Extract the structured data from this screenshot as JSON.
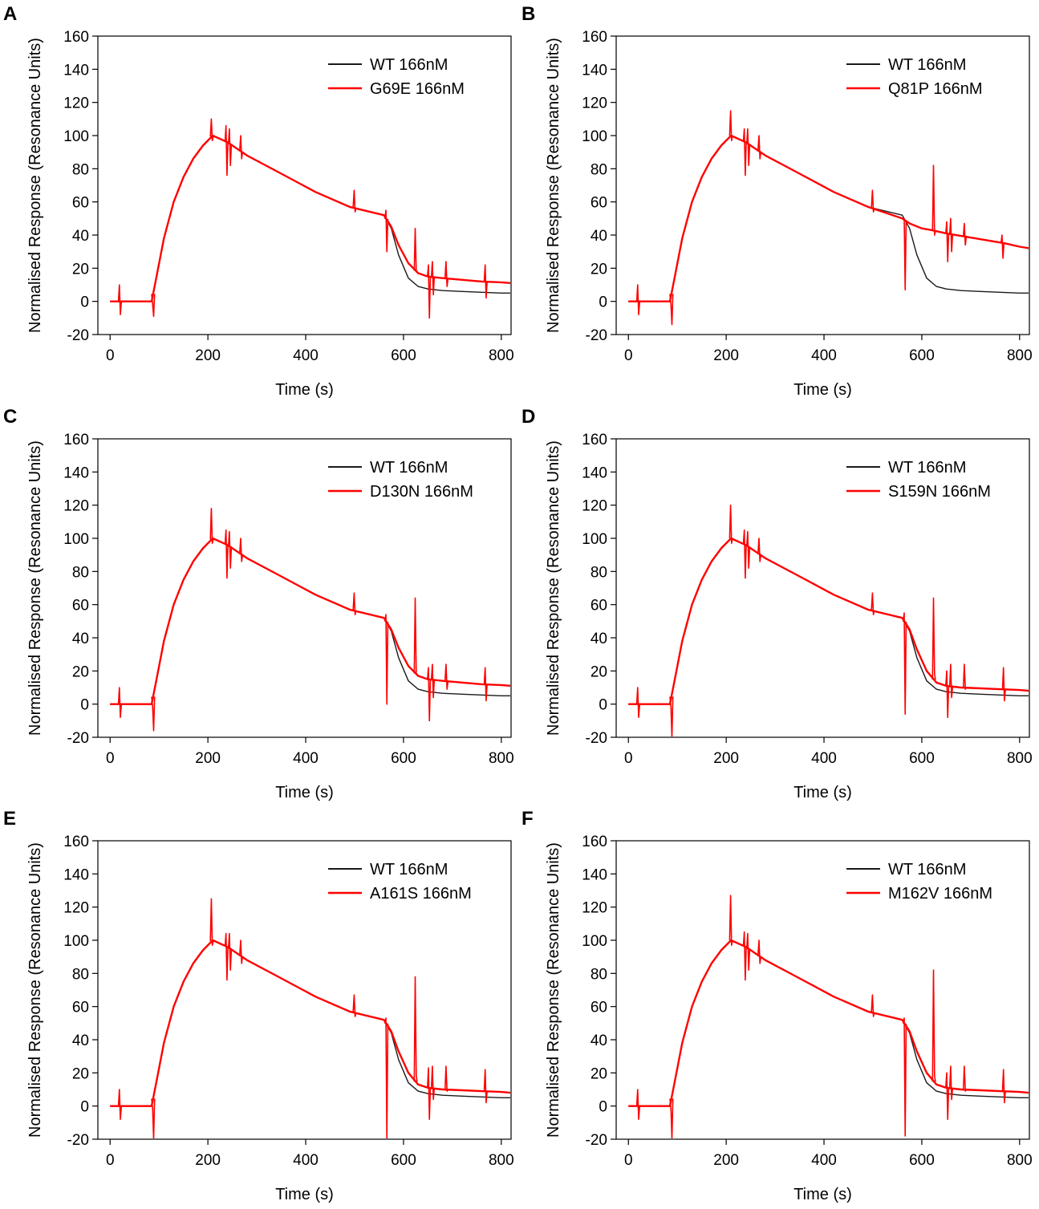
{
  "figure": {
    "colors": {
      "wt": "#1a1a1a",
      "mutant": "#ff0000",
      "axis": "#000000"
    }
  },
  "chart_data": [
    {
      "panel_label": "A",
      "type": "line",
      "xlabel": "Time (s)",
      "ylabel": "Normalised Response (Resonance Units)",
      "xlim": [
        -25,
        820
      ],
      "ylim": [
        -20,
        160
      ],
      "xticks": [
        0,
        200,
        400,
        600,
        800
      ],
      "yticks": [
        -20,
        0,
        20,
        40,
        60,
        80,
        100,
        120,
        140,
        160
      ],
      "legend_position": "top-right",
      "series": [
        {
          "name": "WT 166nM",
          "color": "#1a1a1a",
          "x": [
            0,
            85,
            95,
            110,
            130,
            150,
            170,
            190,
            210,
            240,
            280,
            350,
            420,
            490,
            560,
            575,
            590,
            610,
            630,
            650,
            680,
            720,
            760,
            800,
            820
          ],
          "y": [
            0,
            0,
            15,
            38,
            60,
            75,
            86,
            94,
            100,
            96,
            88,
            77,
            66,
            57,
            52,
            44,
            28,
            14,
            9,
            7.5,
            6.5,
            6,
            5.5,
            5,
            5
          ]
        },
        {
          "name": "G69E 166nM",
          "color": "#ff0000",
          "x": [
            0,
            85,
            95,
            110,
            130,
            150,
            170,
            190,
            210,
            240,
            280,
            350,
            420,
            490,
            560,
            575,
            590,
            610,
            630,
            650,
            680,
            720,
            760,
            800,
            820
          ],
          "y": [
            0,
            0,
            15,
            38,
            60,
            75,
            86,
            94,
            100,
            96,
            88,
            77,
            66,
            57,
            52,
            45,
            34,
            23,
            17,
            15,
            14,
            13,
            12,
            11.5,
            11
          ]
        }
      ],
      "spikes": [
        [
          20,
          10,
          -8
        ],
        [
          88,
          -2,
          -9
        ],
        [
          208,
          110,
          97
        ],
        [
          238,
          106,
          76
        ],
        [
          245,
          104,
          82
        ],
        [
          268,
          100,
          86
        ],
        [
          500,
          67,
          54
        ],
        [
          565,
          55,
          30
        ],
        [
          625,
          44,
          18
        ],
        [
          652,
          22,
          -10
        ],
        [
          660,
          24,
          4
        ],
        [
          688,
          24,
          9
        ],
        [
          768,
          22,
          2
        ]
      ]
    },
    {
      "panel_label": "B",
      "type": "line",
      "xlabel": "Time (s)",
      "ylabel": "Normalised Response (Resonance Units)",
      "xlim": [
        -25,
        820
      ],
      "ylim": [
        -20,
        160
      ],
      "xticks": [
        0,
        200,
        400,
        600,
        800
      ],
      "yticks": [
        -20,
        0,
        20,
        40,
        60,
        80,
        100,
        120,
        140,
        160
      ],
      "legend_position": "top-right",
      "series": [
        {
          "name": "WT 166nM",
          "color": "#1a1a1a",
          "x": [
            0,
            85,
            95,
            110,
            130,
            150,
            170,
            190,
            210,
            240,
            280,
            350,
            420,
            490,
            560,
            575,
            590,
            610,
            630,
            650,
            680,
            720,
            760,
            800,
            820
          ],
          "y": [
            0,
            0,
            15,
            38,
            60,
            75,
            86,
            94,
            100,
            96,
            88,
            77,
            66,
            57,
            52,
            44,
            28,
            14,
            9,
            7.5,
            6.5,
            6,
            5.5,
            5,
            5
          ]
        },
        {
          "name": "Q81P 166nM",
          "color": "#ff0000",
          "x": [
            0,
            85,
            95,
            110,
            130,
            150,
            170,
            190,
            210,
            240,
            280,
            350,
            420,
            490,
            560,
            575,
            600,
            620,
            650,
            690,
            730,
            770,
            800,
            820
          ],
          "y": [
            0,
            0,
            15,
            38,
            60,
            75,
            86,
            94,
            100,
            96,
            88,
            77,
            66,
            57,
            50,
            47,
            44,
            43,
            41,
            39,
            37,
            35,
            33,
            32
          ]
        }
      ],
      "spikes": [
        [
          20,
          10,
          -8
        ],
        [
          88,
          -2,
          -14
        ],
        [
          210,
          115,
          97
        ],
        [
          238,
          104,
          76
        ],
        [
          245,
          104,
          82
        ],
        [
          268,
          100,
          86
        ],
        [
          500,
          67,
          54
        ],
        [
          565,
          50,
          7
        ],
        [
          625,
          82,
          40
        ],
        [
          652,
          48,
          24
        ],
        [
          660,
          50,
          30
        ],
        [
          688,
          47,
          34
        ],
        [
          765,
          40,
          26
        ]
      ]
    },
    {
      "panel_label": "C",
      "type": "line",
      "xlabel": "Time (s)",
      "ylabel": "Normalised Response (Resonance Units)",
      "xlim": [
        -25,
        820
      ],
      "ylim": [
        -20,
        160
      ],
      "xticks": [
        0,
        200,
        400,
        600,
        800
      ],
      "yticks": [
        -20,
        0,
        20,
        40,
        60,
        80,
        100,
        120,
        140,
        160
      ],
      "legend_position": "top-right",
      "series": [
        {
          "name": "WT 166nM",
          "color": "#1a1a1a",
          "x": [
            0,
            85,
            95,
            110,
            130,
            150,
            170,
            190,
            210,
            240,
            280,
            350,
            420,
            490,
            560,
            575,
            590,
            610,
            630,
            650,
            680,
            720,
            760,
            800,
            820
          ],
          "y": [
            0,
            0,
            15,
            38,
            60,
            75,
            86,
            94,
            100,
            96,
            88,
            77,
            66,
            57,
            52,
            44,
            28,
            14,
            9,
            7.5,
            6.5,
            6,
            5.5,
            5,
            5
          ]
        },
        {
          "name": "D130N 166nM",
          "color": "#ff0000",
          "x": [
            0,
            85,
            95,
            110,
            130,
            150,
            170,
            190,
            210,
            240,
            280,
            350,
            420,
            490,
            560,
            575,
            590,
            610,
            630,
            650,
            680,
            720,
            760,
            800,
            820
          ],
          "y": [
            0,
            0,
            15,
            38,
            60,
            75,
            86,
            94,
            100,
            96,
            88,
            77,
            66,
            57,
            52,
            45,
            34,
            23,
            17,
            15,
            14,
            13,
            12,
            11.5,
            11
          ]
        }
      ],
      "spikes": [
        [
          20,
          10,
          -8
        ],
        [
          88,
          -2,
          -16
        ],
        [
          208,
          118,
          97
        ],
        [
          238,
          105,
          76
        ],
        [
          245,
          104,
          82
        ],
        [
          268,
          100,
          86
        ],
        [
          500,
          67,
          54
        ],
        [
          565,
          54,
          0
        ],
        [
          625,
          64,
          18
        ],
        [
          652,
          22,
          -10
        ],
        [
          660,
          24,
          4
        ],
        [
          688,
          24,
          9
        ],
        [
          768,
          22,
          2
        ]
      ]
    },
    {
      "panel_label": "D",
      "type": "line",
      "xlabel": "Time (s)",
      "ylabel": "Normalised Response (Resonance Units)",
      "xlim": [
        -25,
        820
      ],
      "ylim": [
        -20,
        160
      ],
      "xticks": [
        0,
        200,
        400,
        600,
        800
      ],
      "yticks": [
        -20,
        0,
        20,
        40,
        60,
        80,
        100,
        120,
        140,
        160
      ],
      "legend_position": "top-right",
      "series": [
        {
          "name": "WT 166nM",
          "color": "#1a1a1a",
          "x": [
            0,
            85,
            95,
            110,
            130,
            150,
            170,
            190,
            210,
            240,
            280,
            350,
            420,
            490,
            560,
            575,
            590,
            610,
            630,
            650,
            680,
            720,
            760,
            800,
            820
          ],
          "y": [
            0,
            0,
            15,
            38,
            60,
            75,
            86,
            94,
            100,
            96,
            88,
            77,
            66,
            57,
            52,
            44,
            28,
            14,
            9,
            7.5,
            6.5,
            6,
            5.5,
            5,
            5
          ]
        },
        {
          "name": "S159N 166nM",
          "color": "#ff0000",
          "x": [
            0,
            85,
            95,
            110,
            130,
            150,
            170,
            190,
            210,
            240,
            280,
            350,
            420,
            490,
            560,
            575,
            590,
            610,
            630,
            650,
            680,
            720,
            760,
            800,
            820
          ],
          "y": [
            0,
            0,
            15,
            38,
            60,
            75,
            86,
            94,
            100,
            96,
            88,
            77,
            66,
            57,
            52,
            45,
            33,
            20,
            13,
            11,
            10,
            9.5,
            9,
            8.5,
            8
          ]
        }
      ],
      "spikes": [
        [
          20,
          10,
          -8
        ],
        [
          88,
          -2,
          -20
        ],
        [
          210,
          120,
          97
        ],
        [
          238,
          105,
          76
        ],
        [
          245,
          104,
          82
        ],
        [
          268,
          100,
          86
        ],
        [
          500,
          67,
          54
        ],
        [
          565,
          55,
          -6
        ],
        [
          625,
          64,
          18
        ],
        [
          652,
          20,
          -8
        ],
        [
          660,
          24,
          4
        ],
        [
          688,
          24,
          9
        ],
        [
          768,
          22,
          2
        ]
      ]
    },
    {
      "panel_label": "E",
      "type": "line",
      "xlabel": "Time (s)",
      "ylabel": "Normalised Response (Resonance Units)",
      "xlim": [
        -25,
        820
      ],
      "ylim": [
        -20,
        160
      ],
      "xticks": [
        0,
        200,
        400,
        600,
        800
      ],
      "yticks": [
        -20,
        0,
        20,
        40,
        60,
        80,
        100,
        120,
        140,
        160
      ],
      "legend_position": "top-right",
      "series": [
        {
          "name": "WT 166nM",
          "color": "#1a1a1a",
          "x": [
            0,
            85,
            95,
            110,
            130,
            150,
            170,
            190,
            210,
            240,
            280,
            350,
            420,
            490,
            560,
            575,
            590,
            610,
            630,
            650,
            680,
            720,
            760,
            800,
            820
          ],
          "y": [
            0,
            0,
            15,
            38,
            60,
            75,
            86,
            94,
            100,
            96,
            88,
            77,
            66,
            57,
            52,
            44,
            28,
            14,
            9,
            7.5,
            6.5,
            6,
            5.5,
            5,
            5
          ]
        },
        {
          "name": "A161S 166nM",
          "color": "#ff0000",
          "x": [
            0,
            85,
            95,
            110,
            130,
            150,
            170,
            190,
            210,
            240,
            280,
            350,
            420,
            490,
            560,
            575,
            590,
            610,
            630,
            650,
            680,
            720,
            760,
            800,
            820
          ],
          "y": [
            0,
            0,
            15,
            38,
            60,
            75,
            86,
            94,
            100,
            96,
            88,
            77,
            66,
            57,
            52,
            45,
            33,
            20,
            13,
            11,
            10,
            9.5,
            9,
            8.5,
            8
          ]
        }
      ],
      "spikes": [
        [
          20,
          10,
          -8
        ],
        [
          88,
          -2,
          -20
        ],
        [
          208,
          125,
          97
        ],
        [
          238,
          104,
          76
        ],
        [
          245,
          104,
          82
        ],
        [
          268,
          100,
          86
        ],
        [
          500,
          67,
          54
        ],
        [
          565,
          53,
          -20
        ],
        [
          625,
          78,
          18
        ],
        [
          652,
          23,
          -8
        ],
        [
          660,
          24,
          4
        ],
        [
          688,
          24,
          9
        ],
        [
          768,
          22,
          2
        ]
      ]
    },
    {
      "panel_label": "F",
      "type": "line",
      "xlabel": "Time (s)",
      "ylabel": "Normalised Response (Resonance Units)",
      "xlim": [
        -25,
        820
      ],
      "ylim": [
        -20,
        160
      ],
      "xticks": [
        0,
        200,
        400,
        600,
        800
      ],
      "yticks": [
        -20,
        0,
        20,
        40,
        60,
        80,
        100,
        120,
        140,
        160
      ],
      "legend_position": "top-right",
      "series": [
        {
          "name": "WT 166nM",
          "color": "#1a1a1a",
          "x": [
            0,
            85,
            95,
            110,
            130,
            150,
            170,
            190,
            210,
            240,
            280,
            350,
            420,
            490,
            560,
            575,
            590,
            610,
            630,
            650,
            680,
            720,
            760,
            800,
            820
          ],
          "y": [
            0,
            0,
            15,
            38,
            60,
            75,
            86,
            94,
            100,
            96,
            88,
            77,
            66,
            57,
            52,
            44,
            28,
            14,
            9,
            7.5,
            6.5,
            6,
            5.5,
            5,
            5
          ]
        },
        {
          "name": "M162V 166nM",
          "color": "#ff0000",
          "x": [
            0,
            85,
            95,
            110,
            130,
            150,
            170,
            190,
            210,
            240,
            280,
            350,
            420,
            490,
            560,
            575,
            590,
            610,
            630,
            650,
            680,
            720,
            760,
            800,
            820
          ],
          "y": [
            0,
            0,
            15,
            38,
            60,
            75,
            86,
            94,
            100,
            96,
            88,
            77,
            66,
            57,
            52,
            45,
            33,
            20,
            13,
            11,
            10,
            9.5,
            9,
            8.5,
            8
          ]
        }
      ],
      "spikes": [
        [
          20,
          10,
          -8
        ],
        [
          88,
          -2,
          -20
        ],
        [
          210,
          127,
          97
        ],
        [
          238,
          105,
          76
        ],
        [
          245,
          104,
          82
        ],
        [
          268,
          100,
          86
        ],
        [
          500,
          67,
          54
        ],
        [
          565,
          53,
          -18
        ],
        [
          625,
          82,
          18
        ],
        [
          652,
          20,
          -8
        ],
        [
          660,
          24,
          4
        ],
        [
          688,
          24,
          9
        ],
        [
          768,
          22,
          2
        ]
      ]
    }
  ]
}
